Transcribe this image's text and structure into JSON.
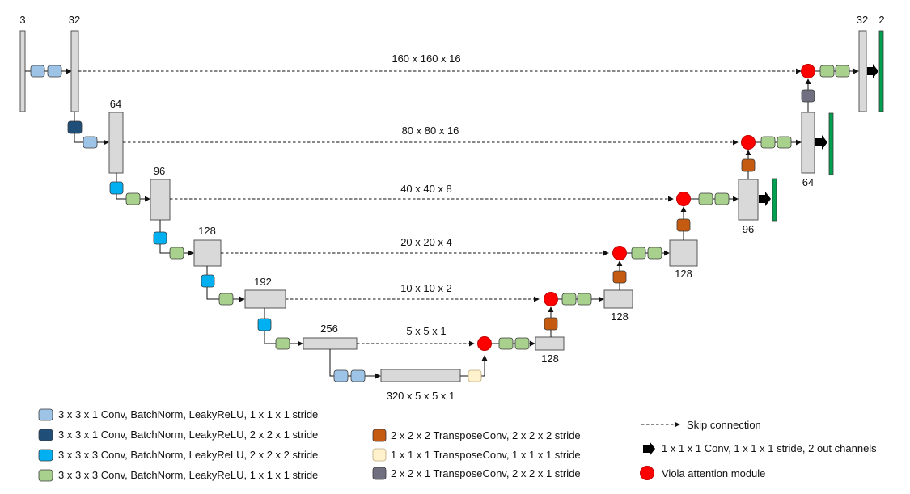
{
  "colors": {
    "conv_311_s111": "#9dc3e6",
    "conv_311_s221": "#1f4e79",
    "conv_333_s222": "#00b0f0",
    "conv_333_s111": "#a9d18e",
    "transposeconv_222": "#c55a11",
    "transposeconv_111": "#fff2cc",
    "transposeconv_221": "#6f6f7f",
    "out_conv_arrow": "#ffe699",
    "output_bar": "#00a050",
    "attention": "#ff0000",
    "block_fill": "#d9d9d9"
  },
  "channels": {
    "input": "3",
    "enc1": "32",
    "enc2": "64",
    "enc3": "96",
    "enc4": "128",
    "enc5": "192",
    "enc6": "256",
    "bottleneck": "320 x 5 x 5 x 1",
    "dec5": "128",
    "dec4": "128",
    "dec3": "128",
    "dec2": "96",
    "dec1": "64",
    "dec0": "32",
    "output": "2"
  },
  "skips": [
    "160 x 160 x 16",
    "80 x 80 x 16",
    "40 x 40 x 8",
    "20 x 20 x 4",
    "10 x 10 x 2",
    "5 x 5 x 1"
  ],
  "legend": {
    "conv_311_s111": "3 x 3 x 1 Conv, BatchNorm, LeakyReLU, 1 x 1 x 1 stride",
    "conv_311_s221": "3 x 3 x 1 Conv, BatchNorm, LeakyReLU, 2 x 2 x 1 stride",
    "conv_333_s222": "3 x 3 x 3 Conv, BatchNorm, LeakyReLU, 2 x 2 x 2 stride",
    "conv_333_s111": "3 x 3 x 3 Conv, BatchNorm, LeakyReLU, 1 x 1 x 1 stride",
    "transposeconv_222": "2 x 2 x 2 TransposeConv,  2 x 2 x 2 stride",
    "transposeconv_111": "1 x 1 x 1 TransposeConv,  1 x 1 x 1 stride",
    "transposeconv_221": "2 x 2 x 1 TransposeConv,  2 x 2 x 1 stride",
    "skip_connection": "Skip connection",
    "out_conv": "1 x 1 x 1 Conv, 1 x 1 x 1 stride, 2 out channels",
    "attention": "Viola attention module"
  }
}
